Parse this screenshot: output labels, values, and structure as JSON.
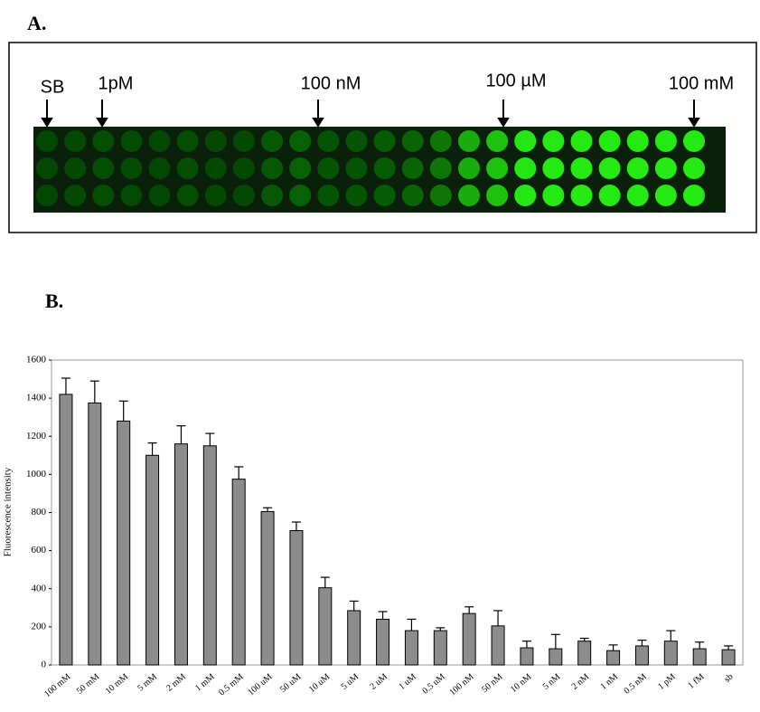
{
  "panel_labels": [
    "A.",
    "B."
  ],
  "array_labels": [
    "SB",
    "1pM",
    "100 nM",
    "100 µM",
    "100 mM"
  ],
  "chart_data": {
    "type": "bar",
    "y_label": "Fluorescence intensity",
    "categories": [
      "100 mM",
      "50 mM",
      "10 mM",
      "5 mM",
      "2 mM",
      "1 mM",
      "0.5 mM",
      "100 uM",
      "50 uM",
      "10 uM",
      "5 uM",
      "2 uM",
      "1 uM",
      "0.5 uM",
      "100 nM",
      "50 nM",
      "10 nM",
      "5 nM",
      "2 nM",
      "1 nM",
      "0.5 nM",
      "1 pM",
      "1 fM",
      "sb"
    ],
    "values": [
      1420,
      1375,
      1280,
      1100,
      1160,
      1150,
      975,
      805,
      705,
      405,
      285,
      240,
      180,
      180,
      270,
      205,
      90,
      85,
      125,
      75,
      100,
      125,
      85,
      80
    ],
    "errors": [
      85,
      115,
      105,
      65,
      95,
      65,
      65,
      20,
      45,
      55,
      50,
      40,
      60,
      15,
      35,
      80,
      35,
      75,
      15,
      30,
      30,
      55,
      35,
      20
    ],
    "color": "#8c8c8c",
    "ylim": [
      0,
      1600
    ],
    "yticks": [
      0,
      200,
      400,
      600,
      800,
      1000,
      1200,
      1400,
      1600
    ]
  }
}
